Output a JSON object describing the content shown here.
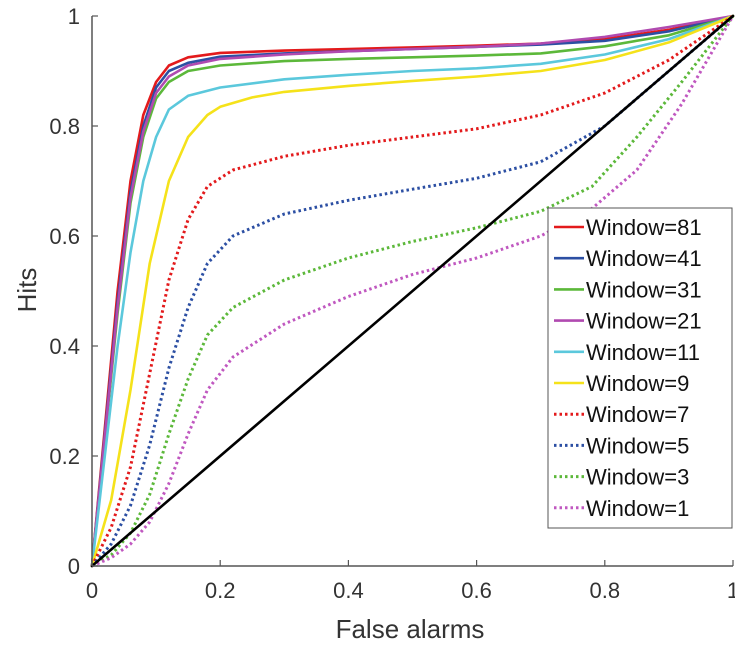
{
  "chart_data": {
    "type": "line",
    "xlabel": "False alarms",
    "ylabel": "Hits",
    "xlim": [
      0,
      1
    ],
    "ylim": [
      0,
      1
    ],
    "grid": false,
    "legend_position": "right",
    "x_ticks": [
      "0",
      "0.2",
      "0.4",
      "0.6",
      "0.8",
      "1"
    ],
    "y_ticks": [
      "0",
      "0.2",
      "0.4",
      "0.6",
      "0.8",
      "1"
    ],
    "series": [
      {
        "name": "Window=81",
        "color": "#e31a1c",
        "style": "solid",
        "points": [
          [
            0,
            0
          ],
          [
            0.02,
            0.25
          ],
          [
            0.04,
            0.5
          ],
          [
            0.06,
            0.7
          ],
          [
            0.08,
            0.82
          ],
          [
            0.1,
            0.88
          ],
          [
            0.12,
            0.91
          ],
          [
            0.15,
            0.925
          ],
          [
            0.2,
            0.933
          ],
          [
            0.3,
            0.937
          ],
          [
            0.4,
            0.94
          ],
          [
            0.5,
            0.943
          ],
          [
            0.6,
            0.946
          ],
          [
            0.7,
            0.95
          ],
          [
            0.8,
            0.958
          ],
          [
            0.9,
            0.975
          ],
          [
            1,
            1
          ]
        ]
      },
      {
        "name": "Window=41",
        "color": "#2c4fa3",
        "style": "solid",
        "points": [
          [
            0,
            0
          ],
          [
            0.02,
            0.24
          ],
          [
            0.04,
            0.48
          ],
          [
            0.06,
            0.68
          ],
          [
            0.08,
            0.8
          ],
          [
            0.1,
            0.87
          ],
          [
            0.12,
            0.9
          ],
          [
            0.15,
            0.915
          ],
          [
            0.2,
            0.926
          ],
          [
            0.3,
            0.932
          ],
          [
            0.4,
            0.936
          ],
          [
            0.5,
            0.94
          ],
          [
            0.6,
            0.944
          ],
          [
            0.7,
            0.948
          ],
          [
            0.8,
            0.955
          ],
          [
            0.9,
            0.972
          ],
          [
            1,
            1
          ]
        ]
      },
      {
        "name": "Window=31",
        "color": "#5cb83a",
        "style": "solid",
        "points": [
          [
            0,
            0
          ],
          [
            0.02,
            0.23
          ],
          [
            0.04,
            0.46
          ],
          [
            0.06,
            0.66
          ],
          [
            0.08,
            0.78
          ],
          [
            0.1,
            0.85
          ],
          [
            0.12,
            0.88
          ],
          [
            0.15,
            0.9
          ],
          [
            0.2,
            0.91
          ],
          [
            0.3,
            0.918
          ],
          [
            0.4,
            0.922
          ],
          [
            0.5,
            0.925
          ],
          [
            0.6,
            0.928
          ],
          [
            0.7,
            0.932
          ],
          [
            0.8,
            0.945
          ],
          [
            0.9,
            0.965
          ],
          [
            1,
            1
          ]
        ]
      },
      {
        "name": "Window=21",
        "color": "#b04ab0",
        "style": "solid",
        "points": [
          [
            0,
            0
          ],
          [
            0.02,
            0.235
          ],
          [
            0.04,
            0.47
          ],
          [
            0.06,
            0.67
          ],
          [
            0.08,
            0.79
          ],
          [
            0.1,
            0.86
          ],
          [
            0.12,
            0.89
          ],
          [
            0.15,
            0.91
          ],
          [
            0.2,
            0.922
          ],
          [
            0.3,
            0.93
          ],
          [
            0.4,
            0.936
          ],
          [
            0.5,
            0.94
          ],
          [
            0.6,
            0.944
          ],
          [
            0.7,
            0.95
          ],
          [
            0.8,
            0.962
          ],
          [
            0.9,
            0.98
          ],
          [
            1,
            1
          ]
        ]
      },
      {
        "name": "Window=11",
        "color": "#5bc8dc",
        "style": "solid",
        "points": [
          [
            0,
            0
          ],
          [
            0.02,
            0.2
          ],
          [
            0.04,
            0.4
          ],
          [
            0.06,
            0.57
          ],
          [
            0.08,
            0.7
          ],
          [
            0.1,
            0.78
          ],
          [
            0.12,
            0.83
          ],
          [
            0.15,
            0.855
          ],
          [
            0.2,
            0.87
          ],
          [
            0.3,
            0.885
          ],
          [
            0.4,
            0.893
          ],
          [
            0.5,
            0.9
          ],
          [
            0.6,
            0.905
          ],
          [
            0.7,
            0.913
          ],
          [
            0.8,
            0.93
          ],
          [
            0.9,
            0.958
          ],
          [
            1,
            1
          ]
        ]
      },
      {
        "name": "Window=9",
        "color": "#f5e21a",
        "style": "solid",
        "points": [
          [
            0,
            0
          ],
          [
            0.03,
            0.12
          ],
          [
            0.06,
            0.32
          ],
          [
            0.09,
            0.55
          ],
          [
            0.12,
            0.7
          ],
          [
            0.15,
            0.78
          ],
          [
            0.18,
            0.82
          ],
          [
            0.2,
            0.835
          ],
          [
            0.25,
            0.852
          ],
          [
            0.3,
            0.862
          ],
          [
            0.4,
            0.873
          ],
          [
            0.5,
            0.882
          ],
          [
            0.6,
            0.89
          ],
          [
            0.7,
            0.9
          ],
          [
            0.8,
            0.92
          ],
          [
            0.9,
            0.952
          ],
          [
            1,
            1
          ]
        ]
      },
      {
        "name": "Window=7",
        "color": "#e31a1c",
        "style": "dotted",
        "points": [
          [
            0,
            0
          ],
          [
            0.03,
            0.07
          ],
          [
            0.06,
            0.18
          ],
          [
            0.09,
            0.35
          ],
          [
            0.12,
            0.52
          ],
          [
            0.15,
            0.63
          ],
          [
            0.18,
            0.69
          ],
          [
            0.22,
            0.72
          ],
          [
            0.3,
            0.745
          ],
          [
            0.4,
            0.765
          ],
          [
            0.5,
            0.78
          ],
          [
            0.6,
            0.795
          ],
          [
            0.7,
            0.82
          ],
          [
            0.8,
            0.86
          ],
          [
            0.9,
            0.92
          ],
          [
            1,
            1
          ]
        ]
      },
      {
        "name": "Window=5",
        "color": "#2c4fa3",
        "style": "dotted",
        "points": [
          [
            0,
            0
          ],
          [
            0.03,
            0.04
          ],
          [
            0.06,
            0.11
          ],
          [
            0.09,
            0.22
          ],
          [
            0.12,
            0.36
          ],
          [
            0.15,
            0.47
          ],
          [
            0.18,
            0.55
          ],
          [
            0.22,
            0.6
          ],
          [
            0.3,
            0.64
          ],
          [
            0.4,
            0.665
          ],
          [
            0.5,
            0.685
          ],
          [
            0.6,
            0.705
          ],
          [
            0.7,
            0.735
          ],
          [
            0.8,
            0.8
          ],
          [
            0.9,
            0.9
          ],
          [
            1,
            1
          ]
        ]
      },
      {
        "name": "Window=3",
        "color": "#5cb83a",
        "style": "dotted",
        "points": [
          [
            0,
            0
          ],
          [
            0.03,
            0.02
          ],
          [
            0.06,
            0.06
          ],
          [
            0.09,
            0.13
          ],
          [
            0.12,
            0.24
          ],
          [
            0.15,
            0.34
          ],
          [
            0.18,
            0.42
          ],
          [
            0.22,
            0.47
          ],
          [
            0.3,
            0.52
          ],
          [
            0.4,
            0.56
          ],
          [
            0.5,
            0.59
          ],
          [
            0.6,
            0.615
          ],
          [
            0.7,
            0.645
          ],
          [
            0.78,
            0.69
          ],
          [
            0.85,
            0.78
          ],
          [
            0.92,
            0.88
          ],
          [
            1,
            1
          ]
        ]
      },
      {
        "name": "Window=1",
        "color": "#c058c0",
        "style": "dotted",
        "points": [
          [
            0,
            0
          ],
          [
            0.03,
            0.015
          ],
          [
            0.06,
            0.04
          ],
          [
            0.09,
            0.08
          ],
          [
            0.12,
            0.15
          ],
          [
            0.15,
            0.24
          ],
          [
            0.18,
            0.32
          ],
          [
            0.22,
            0.38
          ],
          [
            0.3,
            0.44
          ],
          [
            0.4,
            0.49
          ],
          [
            0.5,
            0.53
          ],
          [
            0.6,
            0.56
          ],
          [
            0.7,
            0.6
          ],
          [
            0.78,
            0.65
          ],
          [
            0.85,
            0.72
          ],
          [
            0.92,
            0.84
          ],
          [
            1,
            1
          ]
        ]
      },
      {
        "name": "",
        "color": "#000000",
        "style": "solid",
        "points": [
          [
            0,
            0
          ],
          [
            1,
            1
          ]
        ]
      }
    ]
  }
}
